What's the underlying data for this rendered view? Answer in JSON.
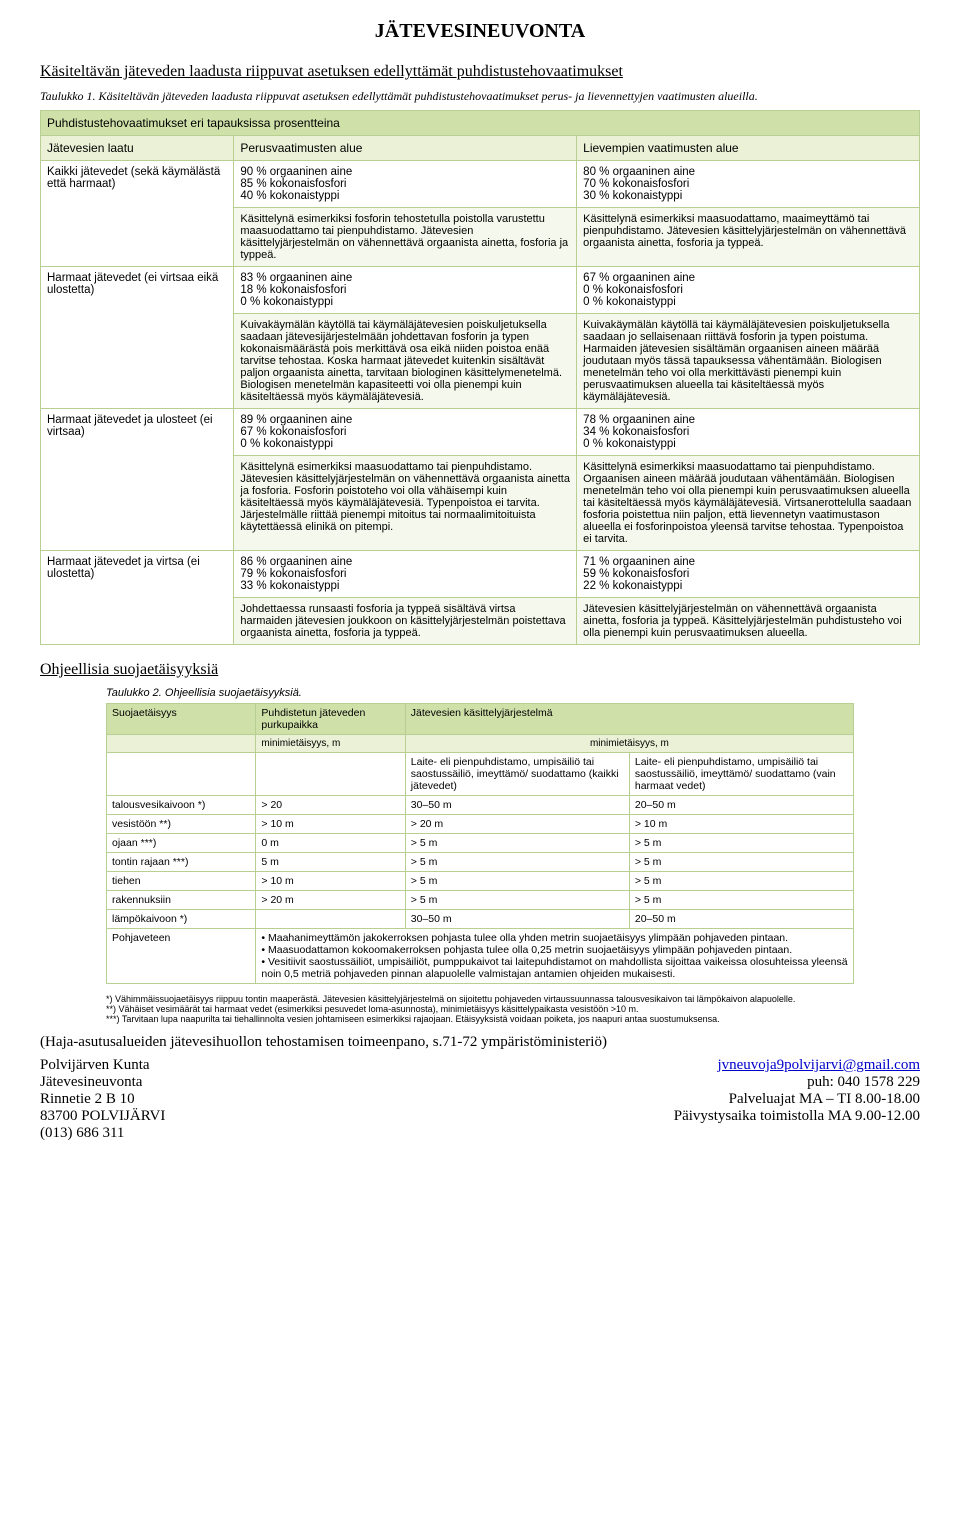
{
  "title": "JÄTEVESINEUVONTA",
  "heading1": "Käsiteltävän jäteveden laadusta riippuvat asetuksen edellyttämät puhdistustehovaatimukset",
  "caption1": "Taulukko 1. Käsiteltävän jäteveden laadusta riippuvat asetuksen edellyttämät puhdistustehovaatimukset perus- ja lievennettyjen vaatimusten alueilla.",
  "table1": {
    "header": "Puhdistustehovaatimukset eri tapauksissa prosentteina",
    "cols": [
      "Jätevesien laatu",
      "Perusvaatimusten alue",
      "Lievempien vaatimusten alue"
    ],
    "rows": [
      {
        "label": "Kaikki jätevedet (sekä käymälästä että harmaat)",
        "stat_b": "90 % orgaaninen aine\n85 % kokonaisfosfori\n40 % kokonaistyppi",
        "stat_c": "80 % orgaaninen aine\n70 % kokonaisfosfori\n30 % kokonaistyppi",
        "desc_b": "Käsittelynä esimerkiksi fosforin tehostetulla poistolla varustettu maasuodattamo tai pienpuhdistamo. Jätevesien käsittelyjärjestelmän on vähennettävä orgaanista ainetta, fosforia ja typpeä.",
        "desc_c": "Käsittelynä esimerkiksi maasuodattamo, maaimeyttämö tai pienpuhdistamo. Jätevesien käsittelyjärjestelmän on vähennettävä orgaanista ainetta, fosforia ja typpeä."
      },
      {
        "label": "Harmaat jätevedet (ei virtsaa eikä ulostetta)",
        "stat_b": "83 % orgaaninen aine\n18 % kokonaisfosfori\n0 % kokonaistyppi",
        "stat_c": "67 % orgaaninen aine\n0 % kokonaisfosfori\n0 % kokonaistyppi",
        "desc_b": "Kuivakäymälän käytöllä tai käymäläjätevesien poiskuljetuksella saadaan jätevesijärjestelmään johdettavan fosforin ja typen kokonaismäärästä pois merkittävä osa eikä niiden poistoa enää tarvitse tehostaa. Koska harmaat jätevedet kuitenkin sisältävät paljon orgaanista ainetta, tarvitaan biologinen käsittelymenetelmä. Biologisen menetelmän kapasiteetti voi olla pienempi kuin käsiteltäessä myös käymäläjätevesiä.",
        "desc_c": "Kuivakäymälän käytöllä tai käymäläjätevesien poiskuljetuksella saadaan jo sellaisenaan riittävä fosforin ja typen poistuma. Harmaiden jätevesien sisältämän orgaanisen aineen määrää joudutaan myös tässä tapauksessa vähentämään. Biologisen menetelmän teho voi olla merkittävästi pienempi kuin perusvaatimuksen alueella tai käsiteltäessä myös käymäläjätevesiä."
      },
      {
        "label": "Harmaat jätevedet ja ulosteet (ei virtsaa)",
        "stat_b": "89 % orgaaninen aine\n67 % kokonaisfosfori\n0 % kokonaistyppi",
        "stat_c": "78 % orgaaninen aine\n34 % kokonaisfosfori\n0 % kokonaistyppi",
        "desc_b": "Käsittelynä esimerkiksi maasuodattamo tai pienpuhdistamo.\nJätevesien käsittelyjärjestelmän on vähennettävä orgaanista ainetta ja fosforia. Fosforin poistoteho voi olla vähäisempi kuin käsiteltäessä myös käymäläjätevesiä. Typenpoistoa ei tarvita. Järjestelmälle riittää pienempi mitoitus tai normaalimitoituista käytettäessä elinikä on pitempi.",
        "desc_c": "Käsittelynä esimerkiksi maasuodattamo tai pienpuhdistamo.\nOrgaanisen aineen määrää joudutaan vähentämään. Biologisen menetelmän teho voi olla pienempi kuin perusvaatimuksen alueella tai käsiteltäessä myös käymäläjätevesiä. Virtsan­erottelulla saadaan fosforia poistettua niin paljon, että lievennetyn vaatimustason alueella ei fosforinpoistoa yleensä tarvitse tehostaa. Typenpoistoa ei tarvita."
      },
      {
        "label": "Harmaat jätevedet ja virtsa (ei ulostetta)",
        "stat_b": "86 % orgaaninen aine\n79 % kokonaisfosfori\n33 % kokonaistyppi",
        "stat_c": "71 % orgaaninen aine\n59 % kokonaisfosfori\n22 % kokonaistyppi",
        "desc_b": "Johdettaessa runsaasti fosforia ja typpeä sisältävä virtsa harmaiden jätevesien joukkoon on käsittelyjärjestelmän poistettava orgaanista ainetta, fosforia ja typpeä.",
        "desc_c": "Jätevesien käsittelyjärjestelmän on vähennettävä orgaanista ainetta, fosforia ja typpeä. Käsittelyjärjestelmän puhdistusteho voi olla pienempi kuin perusvaatimuksen alueella."
      }
    ]
  },
  "heading2": "Ohjeellisia suojaetäisyyksiä",
  "caption2": "Taulukko 2. Ohjeellisia suojaetäisyyksiä.",
  "table2": {
    "cols": [
      "Suojaetäisyys",
      "Puhdistetun jäteveden purkupaikka",
      "Jätevesien käsittelyjärjestelmä",
      ""
    ],
    "subhead_b": "minimietäisyys, m",
    "subhead_cd": "minimietäisyys, m",
    "sys_c": "Laite- eli pienpuhdistamo, umpisäiliö tai saostussäiliö, imeyttämö/ suodattamo (kaikki jätevedet)",
    "sys_d": "Laite- eli pienpuhdistamo, umpisäiliö tai saostussäiliö, imeyttämö/ suodattamo (vain harmaat vedet)",
    "rows": [
      {
        "a": "talousvesikaivoon *)",
        "b": "> 20",
        "c": "30–50 m",
        "d": "20–50 m"
      },
      {
        "a": "vesistöön **)",
        "b": "> 10 m",
        "c": "> 20 m",
        "d": "> 10 m"
      },
      {
        "a": "ojaan ***)",
        "b": "0 m",
        "c": "> 5 m",
        "d": "> 5 m"
      },
      {
        "a": "tontin rajaan ***)",
        "b": "5 m",
        "c": "> 5 m",
        "d": "> 5 m"
      },
      {
        "a": "tiehen",
        "b": "> 10 m",
        "c": "> 5 m",
        "d": "> 5 m"
      },
      {
        "a": "rakennuksiin",
        "b": "> 20 m",
        "c": "> 5 m",
        "d": "> 5 m"
      },
      {
        "a": "lämpökaivoon *)",
        "b": "",
        "c": "30–50 m",
        "d": "20–50 m"
      }
    ],
    "pohja_label": "Pohjaveteen",
    "pohja_text": "• Maahanimeyttämön jakokerroksen pohjasta tulee olla yhden metrin suojaetäisyys ylimpään pohjaveden pintaan.\n• Maasuodattamon kokoomakerroksen pohjasta tulee olla 0,25 metrin suojaetäisyys ylimpään pohjaveden pintaan.\n• Vesitiivit saostussäiliöt, umpisäiliöt, pumppukaivot tai laitepuhdistamot on mahdollista sijoittaa vaikeissa olosuhteissa yleensä noin 0,5 metriä pohjaveden pinnan alapuolelle valmistajan antamien ohjeiden mukaisesti."
  },
  "footnotes": "*) Vähimmäissuojaetäisyys riippuu tontin maaperästä. Jätevesien käsittelyjärjestelmä on sijoitettu pohjaveden virtaussuunnassa talousvesikaivon tai lämpökaivon alapuolelle.\n**) Vähäiset vesimäärät tai harmaat vedet (esimerkiksi pesuvedet loma-asunnosta), minimietäisyys käsittelypaikasta vesistöön >10 m.\n***) Tarvitaan lupa naapurilta tai tiehallinnolta vesien johtamiseen esimerkiksi rajaojaan. Etäisyyksistä voidaan poiketa, jos naapuri antaa suostumuksensa.",
  "source": "(Haja-asutusalueiden jätevesihuollon tehostamisen toimeenpano, s.71-72 ympäristöministeriö)",
  "footer": {
    "left": [
      "Polvijärven Kunta",
      "Jätevesineuvonta",
      "Rinnetie 2 B 10",
      "83700 POLVIJÄRVI",
      "(013) 686 311"
    ],
    "email": "jvneuvoja9polvijarvi@gmail.com",
    "right": [
      "puh: 040 1578 229",
      "Palveluajat MA – TI 8.00-18.00",
      "Päivystysaika toimistolla MA 9.00-12.00"
    ]
  }
}
